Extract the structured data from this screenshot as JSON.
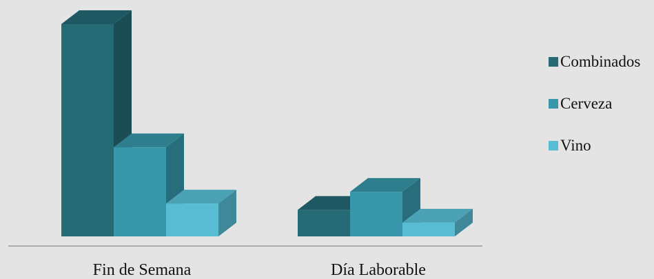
{
  "chart_data": {
    "type": "bar",
    "categories": [
      "Fin de Semana",
      "Día Laborable"
    ],
    "series": [
      {
        "name": "Combinados",
        "values": [
          100,
          12.5
        ]
      },
      {
        "name": "Cerveza",
        "values": [
          42,
          21
        ]
      },
      {
        "name": "Vino",
        "values": [
          15.5,
          6.5
        ]
      }
    ],
    "ylim": [
      0,
      100
    ],
    "grid": false,
    "legend": "right",
    "colors": {
      "series": [
        "#256a75",
        "#3897aa",
        "#58bdd2"
      ],
      "series_side": [
        "#1b4d55",
        "#286d7b",
        "#3f8899"
      ],
      "series_top": [
        "#1e5862",
        "#2e7e8e",
        "#4aa2b4"
      ],
      "axis": "#9a9a9a",
      "background": "#e4e4e4"
    }
  }
}
